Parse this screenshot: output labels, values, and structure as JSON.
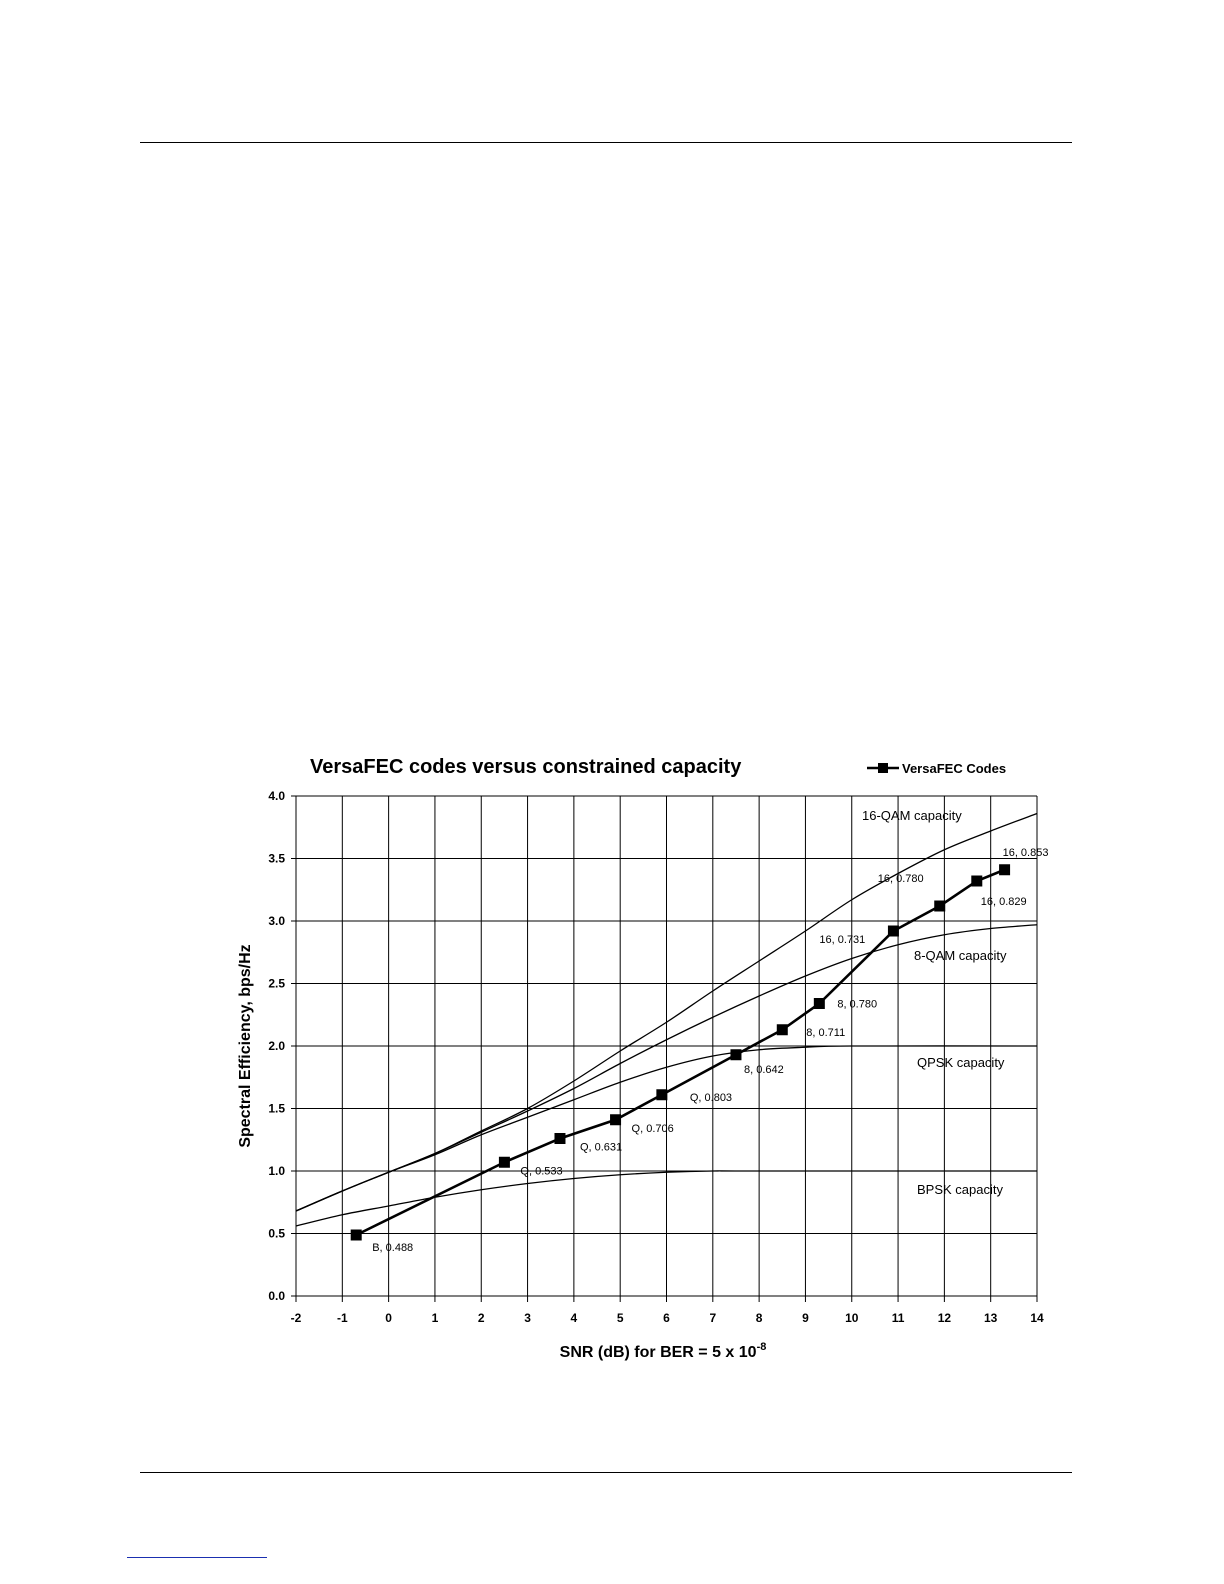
{
  "chart_data": {
    "type": "line",
    "title": "VersaFEC codes versus constrained capacity",
    "xlabel": "SNR (dB) for BER = 5 x 10",
    "xlabel_superscript": "-8",
    "ylabel": "Spectral Efficiency, bps/Hz",
    "xlim": [
      -2,
      14
    ],
    "ylim": [
      0,
      4
    ],
    "x_ticks": [
      "-2",
      "-1",
      "0",
      "1",
      "2",
      "3",
      "4",
      "5",
      "6",
      "7",
      "8",
      "9",
      "10",
      "11",
      "12",
      "13",
      "14"
    ],
    "y_ticks": [
      "0.0",
      "0.5",
      "1.0",
      "1.5",
      "2.0",
      "2.5",
      "3.0",
      "3.5",
      "4.0"
    ],
    "grid": true,
    "legend": {
      "placement": "top-right",
      "entries": [
        "VersaFEC Codes"
      ]
    },
    "series": [
      {
        "name": "VersaFEC Codes",
        "marker": "square",
        "x": [
          -0.7,
          2.5,
          3.7,
          4.9,
          5.9,
          7.5,
          8.5,
          9.3,
          10.9,
          11.9,
          12.7,
          13.3
        ],
        "y": [
          0.488,
          1.07,
          1.26,
          1.41,
          1.61,
          1.93,
          2.13,
          2.34,
          2.92,
          3.12,
          3.32,
          3.41
        ],
        "labels": [
          "B, 0.488",
          "Q, 0.533",
          "Q, 0.631",
          "Q, 0.706",
          "Q, 0.803",
          "8, 0.642",
          "8, 0.711",
          "8, 0.780",
          "16, 0.731",
          "16, 0.780",
          "16, 0.829",
          "16, 0.853"
        ]
      }
    ],
    "capacity_curves": [
      {
        "label": "BPSK capacity",
        "x": [
          -2,
          -1,
          0,
          1,
          2,
          3,
          4,
          5,
          6,
          7,
          8,
          14
        ],
        "y": [
          0.56,
          0.65,
          0.72,
          0.79,
          0.85,
          0.9,
          0.94,
          0.97,
          0.99,
          1.0,
          1.0,
          1.0
        ]
      },
      {
        "label": "QPSK capacity",
        "x": [
          -2,
          -1,
          0,
          1,
          2,
          3,
          4,
          5,
          6,
          7,
          8,
          9,
          10,
          14
        ],
        "y": [
          0.68,
          0.84,
          0.99,
          1.13,
          1.29,
          1.43,
          1.57,
          1.71,
          1.83,
          1.92,
          1.97,
          1.99,
          2.0,
          2.0
        ]
      },
      {
        "label": "8-QAM capacity",
        "x": [
          -2,
          -1,
          0,
          1,
          2,
          3,
          4,
          5,
          6,
          7,
          8,
          9,
          10,
          11,
          12,
          13,
          14
        ],
        "y": [
          0.68,
          0.84,
          0.99,
          1.14,
          1.31,
          1.48,
          1.66,
          1.86,
          2.05,
          2.23,
          2.4,
          2.56,
          2.7,
          2.81,
          2.89,
          2.94,
          2.97
        ]
      },
      {
        "label": "16-QAM capacity",
        "x": [
          -2,
          -1,
          0,
          1,
          2,
          3,
          4,
          5,
          6,
          7,
          8,
          9,
          10,
          11,
          12,
          13,
          14
        ],
        "y": [
          0.68,
          0.84,
          0.99,
          1.14,
          1.32,
          1.5,
          1.72,
          1.96,
          2.19,
          2.44,
          2.68,
          2.92,
          3.17,
          3.38,
          3.57,
          3.72,
          3.86
        ]
      }
    ]
  }
}
